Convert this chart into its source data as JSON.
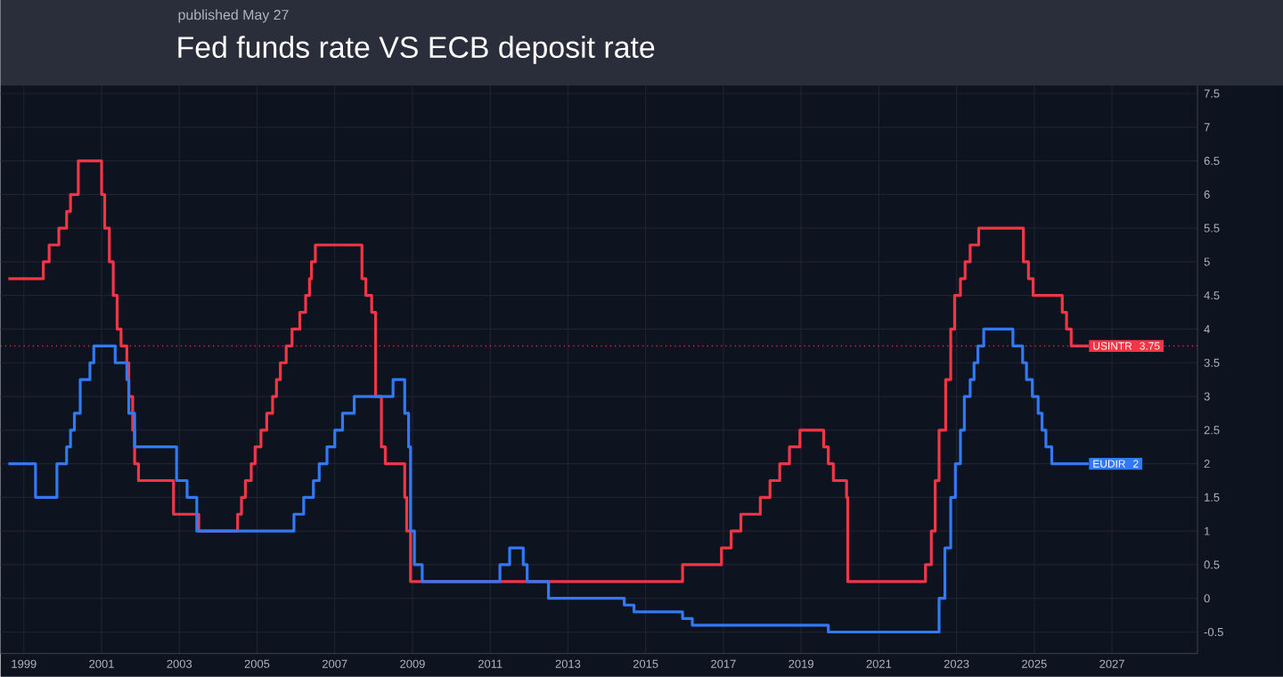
{
  "chart_data": {
    "type": "step",
    "title": "Fed funds rate VS ECB deposit rate",
    "subtitle": "published May 27",
    "xlim": [
      1998.4,
      2029.2
    ],
    "xticks": [
      1999,
      2001,
      2003,
      2005,
      2007,
      2009,
      2011,
      2013,
      2015,
      2017,
      2019,
      2021,
      2023,
      2025,
      2027
    ],
    "ylim": [
      -0.82,
      7.62
    ],
    "yticks": [
      -0.5,
      0,
      0.5,
      1,
      1.5,
      2,
      2.5,
      3,
      3.5,
      4,
      4.5,
      5,
      5.5,
      6,
      6.5,
      7,
      7.5
    ],
    "grid": true,
    "ref_lines": [
      {
        "axis": "y",
        "value": 3.75,
        "color": "#f23645",
        "line_style": "dotted"
      }
    ],
    "annotations": [
      "3.75",
      "2"
    ],
    "series": [
      {
        "name": "USINTR",
        "color": "#f23645",
        "x": [
          1998.6,
          1999.5,
          1999.65,
          1999.9,
          2000.1,
          2000.2,
          2000.4,
          2001.0,
          2001.08,
          2001.2,
          2001.3,
          2001.4,
          2001.5,
          2001.65,
          2001.7,
          2001.8,
          2001.85,
          2001.95,
          2002.85,
          2003.5,
          2004.5,
          2004.6,
          2004.7,
          2004.85,
          2004.95,
          2005.1,
          2005.25,
          2005.4,
          2005.5,
          2005.6,
          2005.75,
          2005.9,
          2006.1,
          2006.25,
          2006.35,
          2006.4,
          2006.5,
          2007.7,
          2007.8,
          2007.95,
          2008.05,
          2008.2,
          2008.3,
          2008.8,
          2008.85,
          2008.95,
          2015.95,
          2016.95,
          2017.2,
          2017.45,
          2017.95,
          2018.2,
          2018.45,
          2018.7,
          2018.97,
          2019.58,
          2019.7,
          2019.83,
          2020.17,
          2020.2,
          2022.2,
          2022.35,
          2022.45,
          2022.55,
          2022.72,
          2022.85,
          2022.95,
          2023.1,
          2023.22,
          2023.35,
          2023.57,
          2024.72,
          2024.85,
          2024.97,
          2025.72,
          2025.83,
          2025.95,
          2026.4
        ],
        "values": [
          4.75,
          5.0,
          5.25,
          5.5,
          5.75,
          6.0,
          6.5,
          6.0,
          5.5,
          5.0,
          4.5,
          4.0,
          3.75,
          3.5,
          3.0,
          2.5,
          2.0,
          1.75,
          1.25,
          1.0,
          1.25,
          1.5,
          1.75,
          2.0,
          2.25,
          2.5,
          2.75,
          3.0,
          3.25,
          3.5,
          3.75,
          4.0,
          4.25,
          4.5,
          4.75,
          5.0,
          5.25,
          4.75,
          4.5,
          4.25,
          3.0,
          2.25,
          2.0,
          1.5,
          1.0,
          0.25,
          0.5,
          0.75,
          1.0,
          1.25,
          1.5,
          1.75,
          2.0,
          2.25,
          2.5,
          2.25,
          2.0,
          1.75,
          1.5,
          0.25,
          0.5,
          1.0,
          1.75,
          2.5,
          3.25,
          4.0,
          4.5,
          4.75,
          5.0,
          5.25,
          5.5,
          5.0,
          4.75,
          4.5,
          4.25,
          4.0,
          3.75,
          3.75
        ]
      },
      {
        "name": "EUDIR",
        "color": "#3179f5",
        "x": [
          1998.6,
          1999.3,
          1999.85,
          2000.1,
          2000.2,
          2000.3,
          2000.45,
          2000.7,
          2000.8,
          2001.35,
          2001.65,
          2001.7,
          2001.85,
          2002.93,
          2003.2,
          2003.45,
          2005.95,
          2006.2,
          2006.45,
          2006.6,
          2006.8,
          2007.0,
          2007.2,
          2007.5,
          2008.5,
          2008.8,
          2008.9,
          2008.95,
          2009.05,
          2009.25,
          2011.25,
          2011.5,
          2011.85,
          2011.95,
          2012.5,
          2014.45,
          2014.7,
          2015.95,
          2016.2,
          2019.7,
          2022.55,
          2022.7,
          2022.85,
          2022.97,
          2023.1,
          2023.2,
          2023.35,
          2023.45,
          2023.55,
          2023.7,
          2024.45,
          2024.7,
          2024.8,
          2024.95,
          2025.1,
          2025.2,
          2025.3,
          2025.45,
          2026.4
        ],
        "values": [
          2.0,
          1.5,
          2.0,
          2.25,
          2.5,
          2.75,
          3.25,
          3.5,
          3.75,
          3.5,
          3.25,
          2.75,
          2.25,
          1.75,
          1.5,
          1.0,
          1.25,
          1.5,
          1.75,
          2.0,
          2.25,
          2.5,
          2.75,
          3.0,
          3.25,
          2.75,
          2.25,
          1.0,
          0.5,
          0.25,
          0.5,
          0.75,
          0.5,
          0.25,
          0.0,
          -0.1,
          -0.2,
          -0.3,
          -0.4,
          -0.5,
          0.0,
          0.75,
          1.5,
          2.0,
          2.5,
          3.0,
          3.25,
          3.5,
          3.75,
          4.0,
          3.75,
          3.5,
          3.25,
          3.0,
          2.75,
          2.5,
          2.25,
          2.0,
          2.0
        ]
      }
    ]
  }
}
